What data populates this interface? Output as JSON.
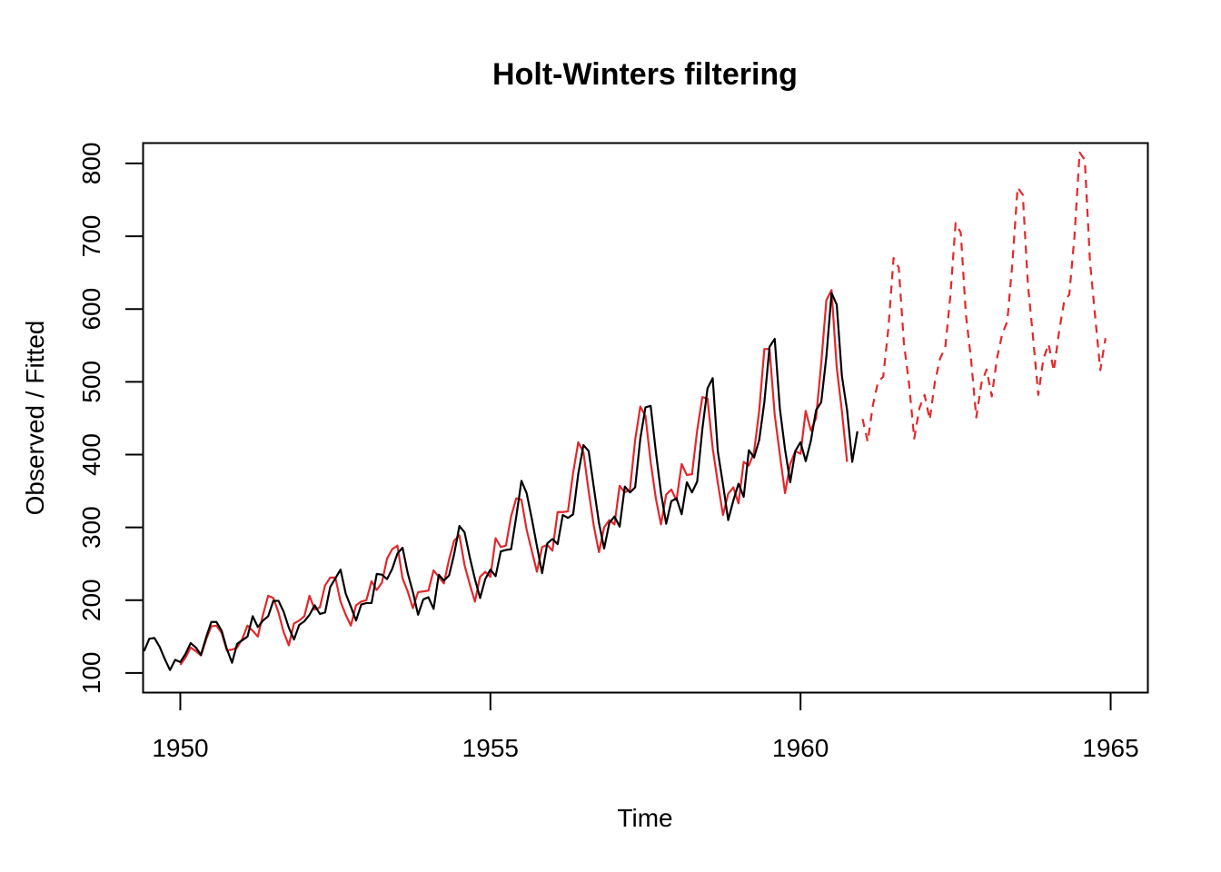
{
  "chart_data": {
    "type": "line",
    "title": "Holt-Winters filtering",
    "xlabel": "Time",
    "ylabel": "Observed / Fitted",
    "xlim": [
      1949.4,
      1965.6
    ],
    "ylim": [
      73,
      828
    ],
    "x_ticks": [
      1950,
      1955,
      1960,
      1965
    ],
    "x_tick_labels": [
      "1950",
      "1955",
      "1960",
      "1965"
    ],
    "y_ticks": [
      100,
      200,
      300,
      400,
      500,
      600,
      700,
      800
    ],
    "y_tick_labels": [
      "100",
      "200",
      "300",
      "400",
      "500",
      "600",
      "700",
      "800"
    ],
    "grid": false,
    "legend": "none",
    "series": [
      {
        "role": "observed",
        "color": "#000000",
        "style": "solid",
        "start": 1949.417,
        "step": 0.083333,
        "values": [
          130,
          147,
          148,
          136,
          119,
          104,
          118,
          115,
          126,
          141,
          135,
          125,
          149,
          170,
          170,
          158,
          133,
          114,
          140,
          145,
          150,
          178,
          163,
          172,
          178,
          199,
          199,
          184,
          162,
          146,
          166,
          171,
          180,
          193,
          181,
          183,
          218,
          230,
          242,
          209,
          191,
          172,
          194,
          196,
          196,
          236,
          235,
          229,
          243,
          264,
          272,
          237,
          211,
          180,
          201,
          204,
          188,
          235,
          227,
          234,
          264,
          302,
          293,
          259,
          229,
          203,
          229,
          242,
          233,
          267,
          269,
          270,
          315,
          364,
          347,
          312,
          274,
          237,
          278,
          284,
          277,
          317,
          313,
          318,
          374,
          413,
          405,
          355,
          306,
          271,
          306,
          315,
          301,
          356,
          348,
          355,
          422,
          465,
          467,
          404,
          347,
          305,
          336,
          340,
          318,
          362,
          348,
          363,
          435,
          491,
          505,
          404,
          359,
          310,
          337,
          360,
          342,
          406,
          396,
          420,
          472,
          548,
          559,
          463,
          407,
          362,
          405,
          417,
          391,
          419,
          461,
          472,
          535,
          622,
          606,
          508,
          461,
          390,
          432
        ]
      },
      {
        "role": "fitted",
        "color": "#e3272b",
        "style": "solid",
        "start": 1950.0,
        "step": 0.083333,
        "values": [
          111,
          121,
          135,
          130,
          124,
          146,
          164,
          165,
          155,
          131,
          132,
          135,
          147,
          165,
          158,
          150,
          180,
          206,
          203,
          183,
          156,
          138,
          168,
          172,
          178,
          206,
          187,
          190,
          220,
          231,
          231,
          198,
          180,
          165,
          193,
          198,
          200,
          226,
          214,
          224,
          257,
          270,
          275,
          230,
          212,
          189,
          211,
          212,
          213,
          241,
          232,
          223,
          256,
          282,
          289,
          248,
          222,
          198,
          232,
          239,
          232,
          285,
          273,
          275,
          315,
          340,
          338,
          297,
          268,
          239,
          273,
          276,
          268,
          321,
          321,
          322,
          375,
          417,
          403,
          350,
          302,
          266,
          300,
          310,
          304,
          357,
          348,
          352,
          420,
          466,
          453,
          390,
          340,
          304,
          345,
          352,
          337,
          387,
          372,
          373,
          433,
          479,
          477,
          409,
          361,
          317,
          346,
          355,
          333,
          390,
          385,
          403,
          460,
          545,
          545,
          455,
          400,
          347,
          387,
          405,
          401,
          460,
          433,
          450,
          525,
          612,
          626,
          520,
          460,
          390
        ]
      },
      {
        "role": "forecast",
        "color": "#e3272b",
        "style": "dashed",
        "start": 1961.0,
        "step": 0.083333,
        "values": [
          449,
          418,
          468,
          500,
          507,
          574,
          670,
          657,
          553,
          497,
          422,
          464,
          482,
          448,
          500,
          532,
          547,
          619,
          718,
          705,
          592,
          530,
          451,
          498,
          517,
          480,
          532,
          565,
          583,
          664,
          767,
          757,
          633,
          560,
          482,
          532,
          552,
          515,
          568,
          610,
          620,
          700,
          815,
          805,
          665,
          590,
          516,
          560
        ]
      }
    ]
  }
}
